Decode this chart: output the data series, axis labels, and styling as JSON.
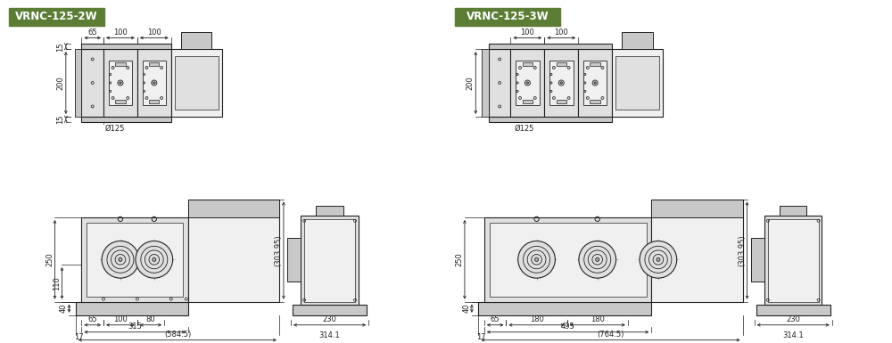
{
  "title_2w": "VRNC-125-2W",
  "title_3w": "VRNC-125-3W",
  "title_bg_color": "#5c7d35",
  "title_text_color": "#ffffff",
  "line_color": "#222222",
  "dim_color": "#222222",
  "fill_lightest": "#f0f0f0",
  "fill_light": "#e0e0e0",
  "fill_medium": "#c8c8c8",
  "fill_dark": "#b0b0b0",
  "fill_darkest": "#909090",
  "bg_color": "#ffffff",
  "dim_font_size": 6.0,
  "title_font_size": 8.5,
  "scale": 0.38
}
